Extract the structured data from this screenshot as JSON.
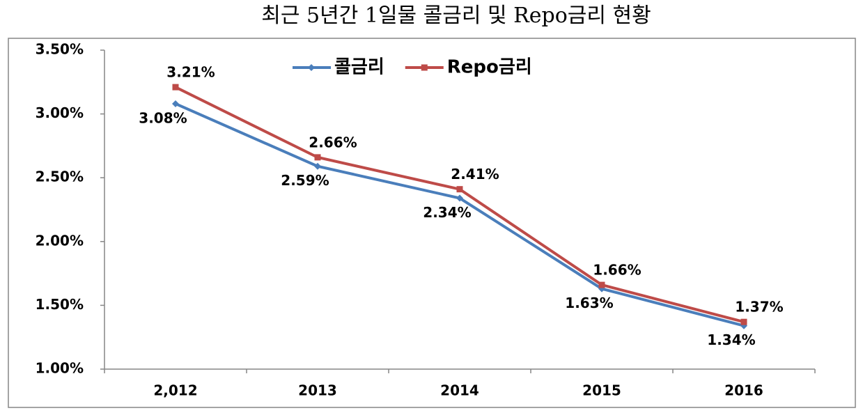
{
  "chart_data": {
    "type": "line",
    "title": "최근 5년간 1일물 콜금리 및 Repo금리 현황",
    "categories": [
      "2,012",
      "2013",
      "2014",
      "2015",
      "2016"
    ],
    "series": [
      {
        "name": "콜금리",
        "color": "#4a7ebb",
        "values": [
          3.08,
          2.59,
          2.34,
          1.63,
          1.34
        ],
        "value_labels": [
          "3.08%",
          "2.59%",
          "2.34%",
          "1.63%",
          "1.34%"
        ]
      },
      {
        "name": "Repo금리",
        "color": "#be4b48",
        "values": [
          3.21,
          2.66,
          2.41,
          1.66,
          1.37
        ],
        "value_labels": [
          "3.21%",
          "2.66%",
          "2.41%",
          "1.66%",
          "1.37%"
        ]
      }
    ],
    "ylim": [
      1.0,
      3.5
    ],
    "yticks": [
      {
        "value": 1.0,
        "label": "1.00%"
      },
      {
        "value": 1.5,
        "label": "1.50%"
      },
      {
        "value": 2.0,
        "label": "2.00%"
      },
      {
        "value": 2.5,
        "label": "2.50%"
      },
      {
        "value": 3.0,
        "label": "3.00%"
      },
      {
        "value": 3.5,
        "label": "3.50%"
      }
    ],
    "grid": false,
    "legend": "top"
  }
}
